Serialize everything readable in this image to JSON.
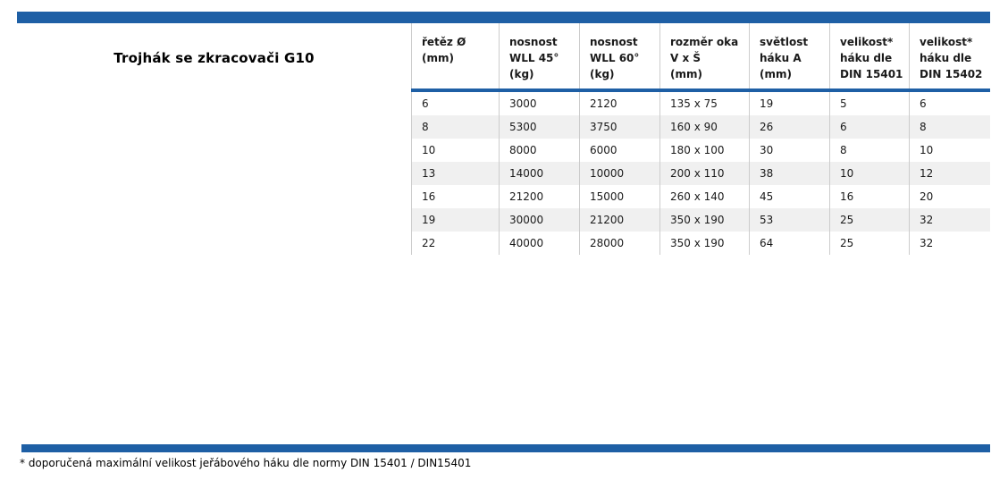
{
  "title": "Trojhák se zkracovači G10",
  "table": {
    "headers": [
      "řetěz Ø\n(mm)",
      "nosnost\nWLL 45°\n(kg)",
      "nosnost\nWLL 60°\n(kg)",
      "rozměr oka\nV x Š\n(mm)",
      "světlost\nháku A\n(mm)",
      "velikost*\nháku dle\nDIN 15401",
      "velikost*\nháku dle\nDIN 15402"
    ],
    "rows": [
      [
        "6",
        "3000",
        "2120",
        "135 x 75",
        "19",
        "5",
        "6"
      ],
      [
        "8",
        "5300",
        "3750",
        "160 x 90",
        "26",
        "6",
        "8"
      ],
      [
        "10",
        "8000",
        "6000",
        "180 x 100",
        "30",
        "8",
        "10"
      ],
      [
        "13",
        "14000",
        "10000",
        "200 x 110",
        "38",
        "10",
        "12"
      ],
      [
        "16",
        "21200",
        "15000",
        "260 x 140",
        "45",
        "16",
        "20"
      ],
      [
        "19",
        "30000",
        "21200",
        "350 x 190",
        "53",
        "25",
        "32"
      ],
      [
        "22",
        "40000",
        "28000",
        "350 x 190",
        "64",
        "25",
        "32"
      ]
    ]
  },
  "footnote": "* doporučená maximální velikost jeřábového háku dle normy DIN 15401 / DIN15401",
  "colors": {
    "accent_blue": "#1E5FA5",
    "alt_row": "#F0F0F0",
    "border": "#CCCCCC"
  }
}
